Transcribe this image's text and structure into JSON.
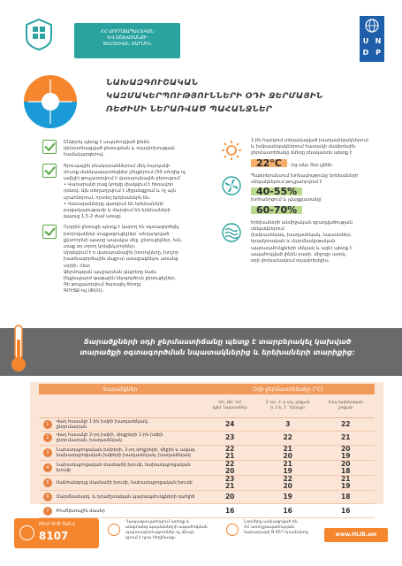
{
  "header": {
    "ministry_logo": "ministry-of-health-emblem",
    "ministry_text": [
      "ՀՀ ԱՌՈՂՋԱՊԱՀԱԿԱՆ",
      "ԵՎ ԱՇԽԱՏԱՆՔԻ",
      "ՏԵՍՉԱԿԱՆ ՄԱՐՄԻՆ"
    ],
    "undp_rows": [
      "U",
      "N",
      "D",
      "P"
    ]
  },
  "title": {
    "lines": [
      "ՆԱԽԱԶԳՈՒՇԱԿԱՆ",
      "ԿԱԶՄԱԿԵՐՊՈՒԹՅՈՒՆՆԵՐԻ ՕԴԻ ՋԵՐՄԱՅԻՆ",
      "ՌԵԺԻՄԻ ՆԵՐԱՌՎԱԾ ՊԱՀԱՆՋՆԵՐ"
    ]
  },
  "left_bullets": [
    {
      "lines": [
        "Ընկերել պետք է ապահովված լինեն",
        "կենտրոնացված ջեռուցման և օդափոխության",
        "համակարգերով։"
      ]
    },
    {
      "lines": [
        "Գրուպային բնակարաններում մեկ հարկանի",
        "մուտք-մանկապարտեզներ շենքերում (50 տեղից ոչ",
        "ավելի) թույլատրվում է վառարանային ջեռուցում՝",
        "• Վառարանի բաց կողմը փակվում է հեռավոր",
        "դռնով։ Այն տեղադրվում է միջանցքում և ոչ այն",
        "սրահներում, որտեղ երեխաներն են։",
        "• Վառարանները վառվում են երեխաների",
        "բացակայությամբ և մարվում են երեխաների",
        "գալուց 1,5-2 ժամ առաջ։"
      ]
    },
    {
      "lines": [
        "Ուղղեն ջեռուցի պետք է կարող են օգտագործվել",
        "խողովակներ տաքացուցիչներ՝ տեղադրված",
        "քնտողոնի պատը ապակյա մեջ, ջեռուցիչներ, եւն, ",
        "տաք օդ տրող կոնվեկտորներ։",
        "Արգելվում է ռ վառարանային խոռոչները, խոշոր",
        "խառնագործային մաքուր առաջացնելու առանց",
        "տրիի։ Հետ",
        "Ջերմության պաշարման վայրերը նաեւ",
        "ինքնաշարժ գազային ներգործուն ջեռուցիչներ,",
        "Գի թույլատրվում ծառայել ծնողը",
        "ԳՈՒՅՔ-ով (ՓՍՍ)։"
      ]
    }
  ],
  "right_blocks": [
    {
      "icon": "sun-icon",
      "lines": [
        "1-ին հարկում տեղակայված խաղասենյակներում",
        "և խմբասենյակներում հատակի մակերեսին",
        "ջերմաստիճանը ձմեռը բնականոն պետք է"
      ],
      "value": "22°C",
      "after": "- ից ակս ձեր չլինի։"
    },
    {
      "icon": "fan-icon",
      "lines": [
        "Պայերերանսում խոնավությունը երեխաների",
        "սենյակներում թույլատրվում է"
      ],
      "value": "40-55%",
      "lines2": [
        "խոհանոցում և լվացքատանը՝"
      ],
      "value2": "60-70%"
    },
    {
      "icon": "waves-icon",
      "lines": [
        "Երեխաների անմիջական զբաղվածության սենյակներում",
        "(խմբասենյակ, խաղասենյակ, նպաստներ,",
        "երաժշտական և մարմնակրթական",
        "պարապմունքների սենյակ և այլն) պետք է",
        "ապահովված լինեն բարի, միջոցր ստրկ,",
        "օդի փոխանակում օդափոխելիս։"
      ]
    }
  ],
  "banner": {
    "icon": "thermometer-icon",
    "lines": [
      "Տարածքների օդի ջերմաստիճանը պետք է տարբերակել կախված",
      "տարածքի օգտագործման նպատակներից և երեխաների տարիքից:"
    ]
  },
  "table": {
    "col_room": "Տարածքներ",
    "col_temp": "Օդի ջերմաստիճանը (°C)",
    "sub_headers": [
      [
        "ԱՀ, ԱՄ, ԿՄ",
        "կլիմ. նպաստներ"
      ],
      [
        "2 տր. 3 -ր դոլ. շոգյան",
        "և 1-ն, 1 ՝ էկնաշր"
      ],
      [
        "4-րդ նախնական",
        "շոգյան"
      ]
    ],
    "rows": [
      {
        "num": "1",
        "label": [
          "Վաղ հասակի 1-ին խմբի խաղասենյակ,",
          "ընդունարան"
        ],
        "v1": [
          "24"
        ],
        "v2": [
          "3"
        ],
        "v3": [
          "22"
        ]
      },
      {
        "num": "2",
        "label": [
          "Վաղ հասակի 2-րդ խմբի, փոքրերի 1-ին խմբի",
          "ընդունարան, խաղասենյակ"
        ],
        "v1": [
          "23"
        ],
        "v2": [
          "22"
        ],
        "v3": [
          "21"
        ]
      },
      {
        "num": "3",
        "label": [
          "Նախադպրոցական խմբերի, 2-րդ փոքրերի, միջին և ավագ",
          "նախադպրոցական խմբերի խաղասենյակ, խաղասենյակ"
        ],
        "v1": [
          "22",
          "21"
        ],
        "v2": [
          "21",
          "20"
        ],
        "v3": [
          "20",
          "19"
        ]
      },
      {
        "num": "4",
        "label": [
          "Նախադպրոցական մասնաձի խումբ, նախադպրոցական խումբ"
        ],
        "v1": [
          "22",
          "20"
        ],
        "v2": [
          "21",
          "19"
        ],
        "v3": [
          "20",
          "18"
        ]
      },
      {
        "num": "5",
        "label": [
          "Սանհանգույց մասնաձի խումբ, նախադպրոցական խումբ"
        ],
        "v1": [
          "23",
          "21"
        ],
        "v2": [
          "22",
          "20"
        ],
        "v3": [
          "21",
          "19"
        ]
      },
      {
        "num": "6",
        "label": [
          "Մարմնամարզ. և երաժշտական պարապմունքների դահլիճ"
        ],
        "v1": [
          "20"
        ],
        "v2": [
          "19"
        ],
        "v3": [
          "18"
        ]
      },
      {
        "num": "7",
        "label": [
          "Բուժկետային մասեր"
        ],
        "v1": [
          "16"
        ],
        "v2": [
          "16"
        ],
        "v3": [
          "16"
        ]
      }
    ]
  },
  "footer": {
    "hotline_label": "ԹԵԺ ԳԻԾ ՏԱՆՍ",
    "hotline_number": "8107",
    "note1": [
      "Ղապագապահովում առողջ և",
      "անվտանգ պայմանների ապահովման",
      "պարտավորություններ ոչ միայն",
      "կրում է դրա հեղինակը։"
    ],
    "note2": [
      "Նորմերը ամրագրված են",
      "ՀՀ առողջապահության",
      "նախարարի N 857 հրամանով"
    ],
    "website": "www.HLIB.am"
  }
}
